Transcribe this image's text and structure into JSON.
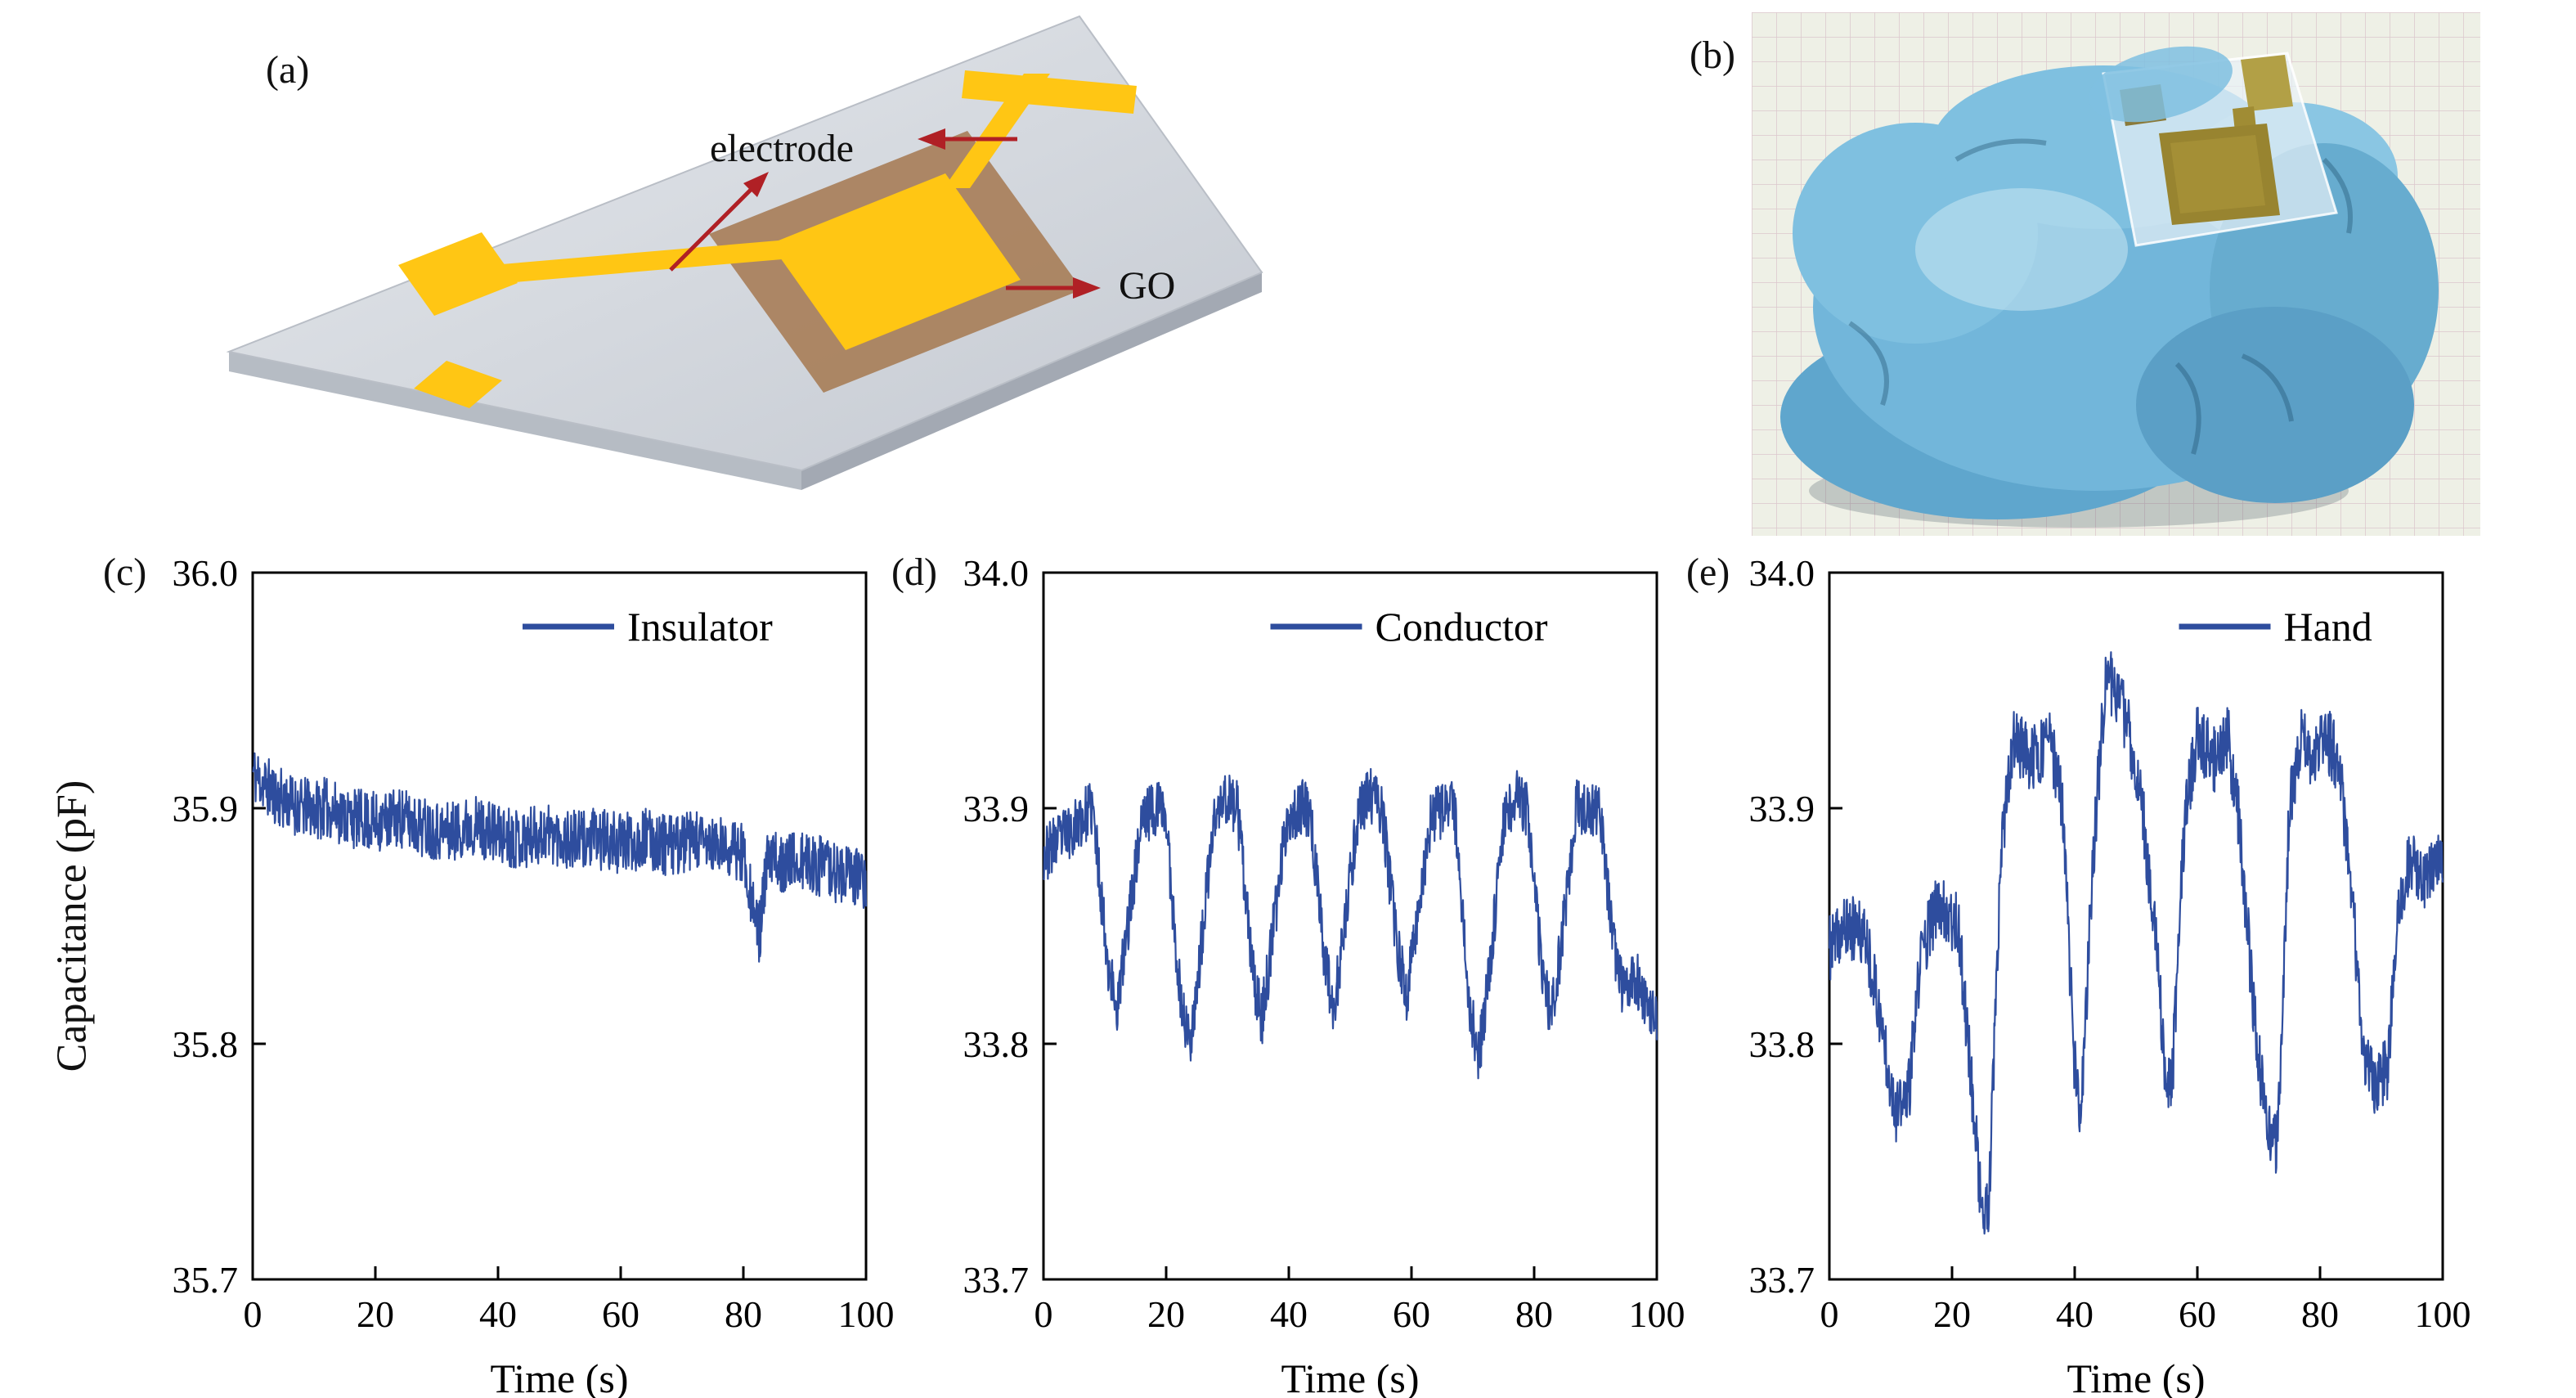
{
  "figure": {
    "panel_labels": {
      "a": "(a)",
      "b": "(b)",
      "c": "(c)",
      "d": "(d)",
      "e": "(e)"
    },
    "schematic": {
      "electrode_label": "electrode",
      "go_label": "GO",
      "colors": {
        "substrate_top": "#d9dce1",
        "substrate_side": "#aab0b9",
        "electrode_gold": "#ffc614",
        "go_pad_brown": "#a87f5a",
        "arrow_red": "#b02025"
      }
    },
    "photo": {
      "colors": {
        "glove_blue": "#72b6da",
        "bench_paper": "#eef0e6",
        "device_gold": "#988430",
        "film": "#e8f0f5"
      }
    }
  },
  "chart_data": [
    {
      "id": "c",
      "type": "line",
      "panel": "(c)",
      "legend": "Insulator",
      "color": "#2e4d9e",
      "xlabel": "Time (s)",
      "ylabel": "Capacitance (pF)",
      "xlim": [
        0,
        100
      ],
      "ylim": [
        35.7,
        36.0
      ],
      "xticks": [
        0,
        20,
        40,
        60,
        80,
        100
      ],
      "xtick_labels": [
        "0",
        "20",
        "40",
        "60",
        "80",
        "100"
      ],
      "yticks": [
        35.7,
        35.8,
        35.9,
        36.0
      ],
      "ytick_labels": [
        "35.7",
        "35.8",
        "35.9",
        "36.0"
      ],
      "legend_frac": 0.44,
      "grid": false,
      "noise": 0.013,
      "seed": 11,
      "anchors": {
        "t": [
          0,
          4,
          8,
          12,
          16,
          20,
          24,
          28,
          32,
          36,
          40,
          44,
          48,
          52,
          56,
          60,
          64,
          68,
          72,
          76,
          80,
          81.5,
          82.5,
          84,
          88,
          92,
          96,
          100
        ],
        "y": [
          35.915,
          35.905,
          35.9,
          35.9,
          35.896,
          35.894,
          35.896,
          35.892,
          35.89,
          35.893,
          35.889,
          35.887,
          35.89,
          35.886,
          35.887,
          35.885,
          35.887,
          35.884,
          35.886,
          35.883,
          35.882,
          35.86,
          35.845,
          35.878,
          35.877,
          35.876,
          35.872,
          35.87
        ]
      }
    },
    {
      "id": "d",
      "type": "line",
      "panel": "(d)",
      "legend": "Conductor",
      "color": "#2e4d9e",
      "xlabel": "Time (s)",
      "ylabel": "",
      "xlim": [
        0,
        100
      ],
      "ylim": [
        33.7,
        34.0
      ],
      "xticks": [
        0,
        20,
        40,
        60,
        80,
        100
      ],
      "xtick_labels": [
        "0",
        "20",
        "40",
        "60",
        "80",
        "100"
      ],
      "yticks": [
        33.7,
        33.8,
        33.9,
        34.0
      ],
      "ytick_labels": [
        "33.7",
        "33.8",
        "33.9",
        "34.0"
      ],
      "legend_frac": 0.37,
      "grid": false,
      "noise": 0.012,
      "seed": 23,
      "anchors": {
        "t": [
          0,
          2,
          6,
          8,
          10.5,
          12,
          13.5,
          16,
          18,
          19.8,
          22.3,
          23.8,
          25.3,
          27.8,
          29.8,
          31.6,
          34.1,
          35.6,
          37.1,
          39.6,
          41.6,
          43.4,
          45.9,
          47.4,
          48.9,
          51.4,
          53.4,
          55.2,
          57.7,
          59.2,
          60.7,
          63.2,
          65.2,
          67,
          69.5,
          71,
          72.5,
          75,
          77,
          78.8,
          81.3,
          82.8,
          84.3,
          86.8,
          88.8,
          90.6,
          93.1,
          94.6,
          96.1,
          98,
          100
        ],
        "y": [
          33.88,
          33.885,
          33.895,
          33.9,
          33.835,
          33.815,
          33.845,
          33.895,
          33.9,
          33.9,
          33.82,
          33.8,
          33.83,
          33.895,
          33.905,
          33.9,
          33.83,
          33.81,
          33.84,
          33.895,
          33.9,
          33.9,
          33.835,
          33.815,
          33.845,
          33.9,
          33.905,
          33.9,
          33.84,
          33.82,
          33.85,
          33.895,
          33.9,
          33.9,
          33.815,
          33.795,
          33.825,
          33.895,
          33.905,
          33.9,
          33.83,
          33.81,
          33.84,
          33.9,
          33.9,
          33.9,
          33.84,
          33.82,
          33.83,
          33.82,
          33.81
        ]
      }
    },
    {
      "id": "e",
      "type": "line",
      "panel": "(e)",
      "legend": "Hand",
      "color": "#2e4d9e",
      "xlabel": "Time (s)",
      "ylabel": "",
      "xlim": [
        0,
        100
      ],
      "ylim": [
        33.7,
        34.0
      ],
      "xticks": [
        0,
        20,
        40,
        60,
        80,
        100
      ],
      "xtick_labels": [
        "0",
        "20",
        "40",
        "60",
        "80",
        "100"
      ],
      "yticks": [
        33.7,
        33.8,
        33.9,
        34.0
      ],
      "ytick_labels": [
        "33.7",
        "33.8",
        "33.9",
        "34.0"
      ],
      "legend_frac": 0.57,
      "grid": false,
      "noise": 0.014,
      "seed": 37,
      "anchors": {
        "t": [
          0,
          3,
          6,
          9,
          11,
          13,
          15,
          18,
          21,
          23,
          25,
          26,
          28,
          30,
          33,
          36,
          38,
          40,
          41,
          43,
          45,
          47,
          49,
          51,
          53,
          55,
          56,
          58,
          60,
          63,
          65,
          67,
          69,
          71,
          73,
          75,
          77,
          79,
          81,
          83,
          85,
          87,
          89,
          91,
          93,
          95,
          97,
          100
        ],
        "y": [
          33.84,
          33.85,
          33.845,
          33.8,
          33.77,
          33.78,
          33.84,
          33.86,
          33.85,
          33.79,
          33.725,
          33.73,
          33.88,
          33.93,
          33.92,
          33.93,
          33.9,
          33.79,
          33.765,
          33.88,
          33.955,
          33.95,
          33.93,
          33.9,
          33.85,
          33.78,
          33.79,
          33.9,
          33.93,
          33.92,
          33.93,
          33.89,
          33.82,
          33.77,
          33.755,
          33.9,
          33.93,
          33.92,
          33.93,
          33.92,
          33.87,
          33.8,
          33.78,
          33.79,
          33.86,
          33.88,
          33.87,
          33.88
        ]
      }
    }
  ]
}
